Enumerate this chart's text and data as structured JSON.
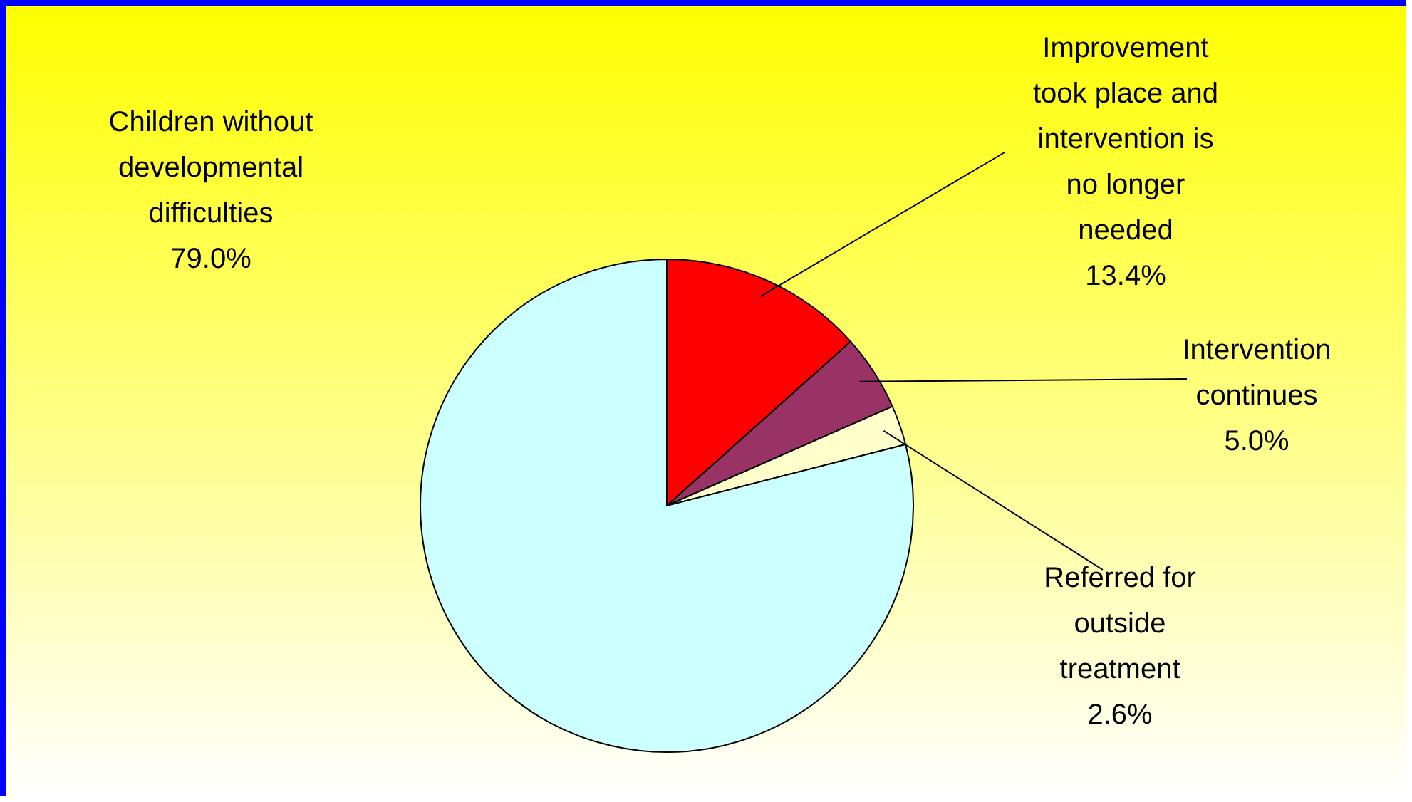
{
  "chart_data": {
    "type": "pie",
    "categories": [
      "Improvement\ntook place and\nintervention is\nno longer\nneeded",
      "Intervention\ncontinues",
      "Referred for\noutside\ntreatment",
      "Children without\ndevelopmental\ndifficulties"
    ],
    "values": [
      13.4,
      5.0,
      2.6,
      79.0
    ],
    "colors": [
      "#ff0000",
      "#993366",
      "#ffffcc",
      "#ccffff"
    ],
    "value_labels": [
      "13.4%",
      "5.0%",
      "2.6%",
      "79.0%"
    ]
  }
}
